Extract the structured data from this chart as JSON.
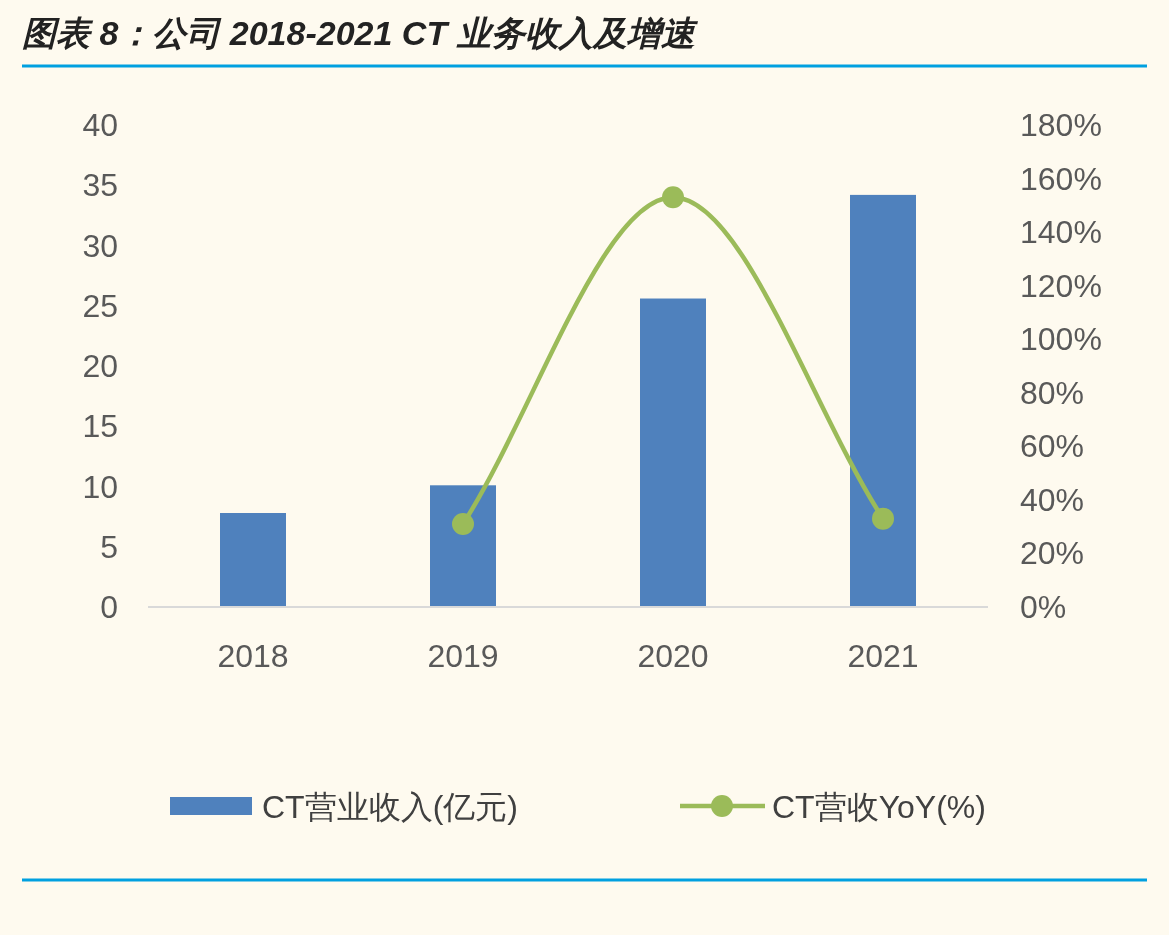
{
  "chart_data": {
    "type": "bar",
    "title": "图表 8：公司 2018-2021 CT 业务收入及增速",
    "categories": [
      "2018",
      "2019",
      "2020",
      "2021"
    ],
    "series": [
      {
        "name": "CT营业收入(亿元)",
        "color": "#4f81bd",
        "values": [
          7.8,
          10.1,
          25.6,
          34.2
        ]
      },
      {
        "name": "CT营收YoY(%)",
        "type": "line",
        "axis": "y2",
        "color": "#9bbb59",
        "marker": "circle",
        "values": [
          null,
          31,
          153,
          33
        ]
      }
    ],
    "ylim": [
      0,
      40
    ],
    "yticks": [
      0,
      5,
      10,
      15,
      20,
      25,
      30,
      35,
      40
    ],
    "y2lim": [
      0,
      180
    ],
    "y2ticks": [
      {
        "value": 0,
        "label": "0%"
      },
      {
        "value": 20,
        "label": "20%"
      },
      {
        "value": 40,
        "label": "40%"
      },
      {
        "value": 60,
        "label": "60%"
      },
      {
        "value": 80,
        "label": "80%"
      },
      {
        "value": 100,
        "label": "100%"
      },
      {
        "value": 120,
        "label": "120%"
      },
      {
        "value": 140,
        "label": "140%"
      },
      {
        "value": 160,
        "label": "160%"
      },
      {
        "value": 180,
        "label": "180%"
      }
    ],
    "grid": false,
    "legend": "bottom"
  }
}
